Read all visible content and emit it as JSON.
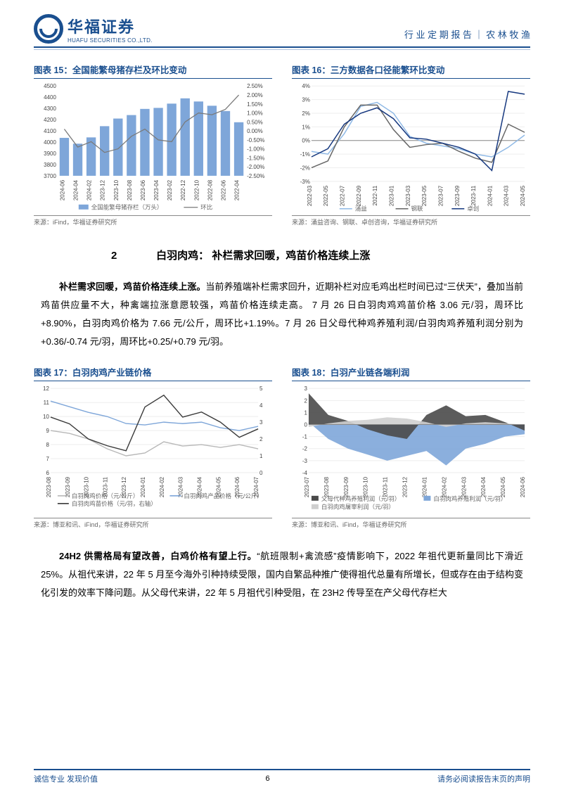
{
  "header": {
    "company_cn": "华福证券",
    "company_en": "HUAFU SECURITIES CO.,LTD.",
    "right": "行 业 定 期 报 告  ｜  农 林 牧 渔"
  },
  "footer": {
    "left": "诚信专业  发现价值",
    "page": "6",
    "right": "请务必阅读报告末页的声明"
  },
  "chart15": {
    "title": "图表 15：全国能繁母猪存栏及环比变动",
    "source": "来源：iFind，华福证券研究所",
    "type": "bar+line",
    "y1lim": [
      3700,
      4500
    ],
    "y1ticks": [
      3700,
      3800,
      3900,
      4000,
      4100,
      4200,
      4300,
      4400,
      4500
    ],
    "y2lim": [
      -2.5,
      2.5
    ],
    "y2ticks": [
      "2.50%",
      "2.00%",
      "1.50%",
      "1.00%",
      "0.50%",
      "0.00%",
      "-0.50%",
      "-1.00%",
      "-1.50%",
      "-2.00%",
      "-2.50%"
    ],
    "x": [
      "2024-06",
      "2024-04",
      "2024-02",
      "2023-12",
      "2023-10",
      "2023-08",
      "2023-06",
      "2023-04",
      "2023-02",
      "2022-12",
      "2022-10",
      "2022-08",
      "2022-06",
      "2022-04"
    ],
    "bars": [
      4038,
      3986,
      4042,
      4142,
      4210,
      4241,
      4296,
      4305,
      4343,
      4390,
      4362,
      4324,
      4277,
      4177
    ],
    "line_pct": [
      0.1,
      -0.9,
      -0.6,
      -1.2,
      -1.0,
      -0.3,
      0.1,
      -0.5,
      -0.6,
      0.5,
      1.0,
      0.9,
      1.2,
      2.0
    ],
    "bar_color": "#7ea6d9",
    "line_color": "#7a7a7a",
    "legend": [
      "全国能繁母猪存栏（万头）",
      "环比"
    ]
  },
  "chart16": {
    "title": "图表 16：三方数据各口径能繁环比变动",
    "source": "来源：涌益咨询、钢联、卓创咨询，华福证券研究所",
    "type": "line",
    "ylim": [
      -3,
      4
    ],
    "yticks": [
      "4%",
      "3%",
      "2%",
      "1%",
      "0%",
      "-1%",
      "-2%",
      "-3%"
    ],
    "x": [
      "2022-03",
      "2022-05",
      "2022-07",
      "2022-09",
      "2022-11",
      "2023-01",
      "2023-03",
      "2023-05",
      "2023-07",
      "2023-09",
      "2023-11",
      "2024-01",
      "2024-03",
      "2024-05"
    ],
    "series": {
      "yongyi": {
        "color": "#8fb9e6",
        "vals": [
          -0.8,
          -1.0,
          0.5,
          2.5,
          2.8,
          2.0,
          0.3,
          -0.2,
          -0.4,
          -0.6,
          -1.0,
          -1.2,
          -0.5,
          0.4
        ]
      },
      "ganglian": {
        "color": "#666666",
        "vals": [
          -2.0,
          -1.5,
          1.0,
          2.6,
          2.6,
          0.8,
          -0.5,
          -0.3,
          -0.2,
          -0.8,
          -1.3,
          -1.6,
          1.2,
          0.6
        ]
      },
      "zhuochuang": {
        "color": "#16387f",
        "vals": [
          -1.2,
          -0.6,
          1.2,
          2.0,
          2.4,
          1.6,
          0.2,
          0.1,
          -0.2,
          -0.5,
          -1.0,
          -2.2,
          3.6,
          3.4
        ]
      }
    },
    "legend": [
      "涌益",
      "钢联",
      "卓创"
    ]
  },
  "section2": {
    "num": "2",
    "title": "白羽肉鸡：  补栏需求回暖，鸡苗价格连续上涨"
  },
  "para1": {
    "lead": "补栏需求回暖，鸡苗价格连续上涨。",
    "text": "当前养殖端补栏需求回升，近期补栏对应毛鸡出栏时间已过“三伏天”，叠加当前鸡苗供应量不大，种禽端拉涨意愿较强，鸡苗价格连续走高。 7 月 26 日白羽肉鸡鸡苗价格 3.06 元/羽，周环比+8.90%，白羽肉鸡价格为 7.66 元/公斤，周环比+1.19%。7 月 26 日父母代种鸡养殖利润/白羽肉鸡养殖利润分别为+0.36/-0.74 元/羽，周环比+0.25/+0.79 元/羽。"
  },
  "chart17": {
    "title": "图表 17：白羽肉鸡产业链价格",
    "source": "来源：博亚和讯、iFind，华福证券研究所",
    "type": "line-dual",
    "y1lim": [
      6,
      12
    ],
    "y1ticks": [
      6,
      7,
      8,
      9,
      10,
      11,
      12
    ],
    "y2lim": [
      0,
      5
    ],
    "y2ticks": [
      0,
      1,
      2,
      3,
      4,
      5
    ],
    "x": [
      "2023-08",
      "2023-09",
      "2023-10",
      "2023-11",
      "2023-12",
      "2024-01",
      "2024-02",
      "2024-03",
      "2024-04",
      "2024-05",
      "2024-06",
      "2024-07"
    ],
    "series": {
      "price": {
        "color": "#b8b8b8",
        "vals": [
          9.0,
          8.8,
          8.4,
          7.7,
          7.2,
          7.4,
          8.2,
          7.9,
          8.0,
          7.8,
          8.0,
          7.7
        ]
      },
      "product": {
        "color": "#7ea6d9",
        "vals": [
          11.1,
          10.7,
          10.3,
          10.0,
          9.5,
          9.4,
          9.6,
          9.5,
          9.6,
          9.2,
          9.0,
          9.3
        ]
      },
      "chick": {
        "color": "#3a3a3a",
        "vals_r": [
          3.3,
          2.9,
          2.0,
          1.6,
          1.3,
          3.9,
          4.6,
          3.3,
          3.6,
          3.0,
          2.1,
          2.6
        ]
      }
    },
    "legend": [
      "白羽肉鸡价格（元/公斤）",
      "白羽肉鸡产品价格（元/公斤）",
      "白羽肉鸡苗价格（元/羽，右轴）"
    ]
  },
  "chart18": {
    "title": "图表 18：白羽产业链各端利润",
    "source": "来源：博亚和讯、iFind，华福证券研究所",
    "type": "area",
    "ylim": [
      -4,
      3
    ],
    "yticks": [
      3,
      2,
      1,
      0,
      -1,
      -2,
      -3,
      -4
    ],
    "x": [
      "2023-07",
      "2023-08",
      "2023-09",
      "2023-10",
      "2023-11",
      "2023-12",
      "2024-01",
      "2024-02",
      "2024-03",
      "2024-04",
      "2024-05",
      "2024-06"
    ],
    "series": {
      "parent": {
        "color": "#4a4a4a",
        "vals": [
          2.6,
          0.8,
          0.3,
          -0.4,
          -0.9,
          -1.2,
          0.8,
          1.6,
          0.7,
          0.8,
          0.2,
          -0.5
        ]
      },
      "broiler": {
        "color": "#7ea6d9",
        "vals": [
          0.2,
          -1.2,
          -2.0,
          -2.5,
          -3.0,
          -2.6,
          -2.2,
          -3.4,
          -2.0,
          -1.6,
          -1.0,
          -0.8
        ]
      },
      "slaughter": {
        "color": "#cfcfcf",
        "vals": [
          -0.2,
          0.1,
          0.3,
          0.4,
          0.6,
          0.5,
          0.2,
          -0.2,
          0.1,
          0.2,
          0.1,
          0.0
        ]
      }
    },
    "legend": [
      "父母代种鸡养殖利润（元/羽）",
      "白羽肉鸡养殖利润（元/羽）",
      "白羽肉鸡屠宰利润（元/羽）"
    ]
  },
  "para2": {
    "lead": "24H2 供需格局有望改善，白鸡价格有望上行。",
    "text": "“航班限制+禽流感”疫情影响下，2022 年祖代更新量同比下滑近 25%。从祖代来讲，22 年 5 月至今海外引种持续受限，国内自繁品种推广使得祖代总量有所增长，但或存在由于结构变化引发的效率下降问题。从父母代来讲，22 年 5 月祖代引种受阻，在 23H2 传导至在产父母代存栏大"
  }
}
